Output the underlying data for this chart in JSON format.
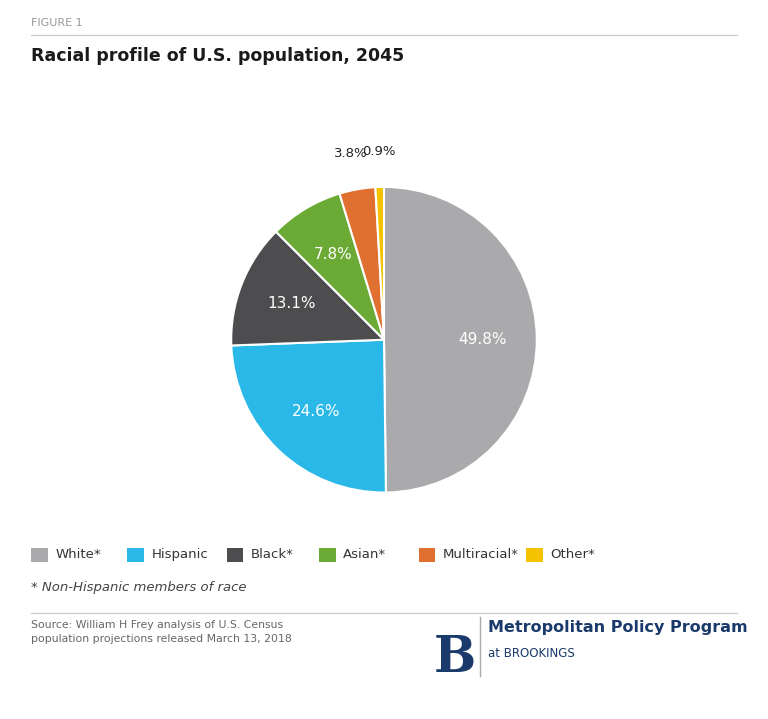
{
  "title": "Racial profile of U.S. population, 2045",
  "figure_label": "FIGURE 1",
  "slices": [
    49.8,
    24.6,
    13.1,
    7.8,
    3.8,
    0.9
  ],
  "labels": [
    "White*",
    "Hispanic",
    "Black*",
    "Asian*",
    "Multiracial*",
    "Other*"
  ],
  "pct_labels": [
    "49.8%",
    "24.6%",
    "13.1%",
    "7.8%",
    "3.8%",
    "0.9%"
  ],
  "colors": [
    "#aaaaad",
    "#29b8e8",
    "#4d4d4f",
    "#6aaa35",
    "#e07030",
    "#f5c200"
  ],
  "startangle": 90,
  "source_text": "Source: William H Frey analysis of U.S. Census\npopulation projections released March 13, 2018",
  "footnote": "* Non-Hispanic members of race",
  "background_color": "#ffffff",
  "fig_label_color": "#999999",
  "title_color": "#1a1a1a",
  "legend_text_color": "#333333",
  "footnote_color": "#444444",
  "source_color": "#666666",
  "brookings_color": "#1a3a6b",
  "line_color": "#cccccc"
}
